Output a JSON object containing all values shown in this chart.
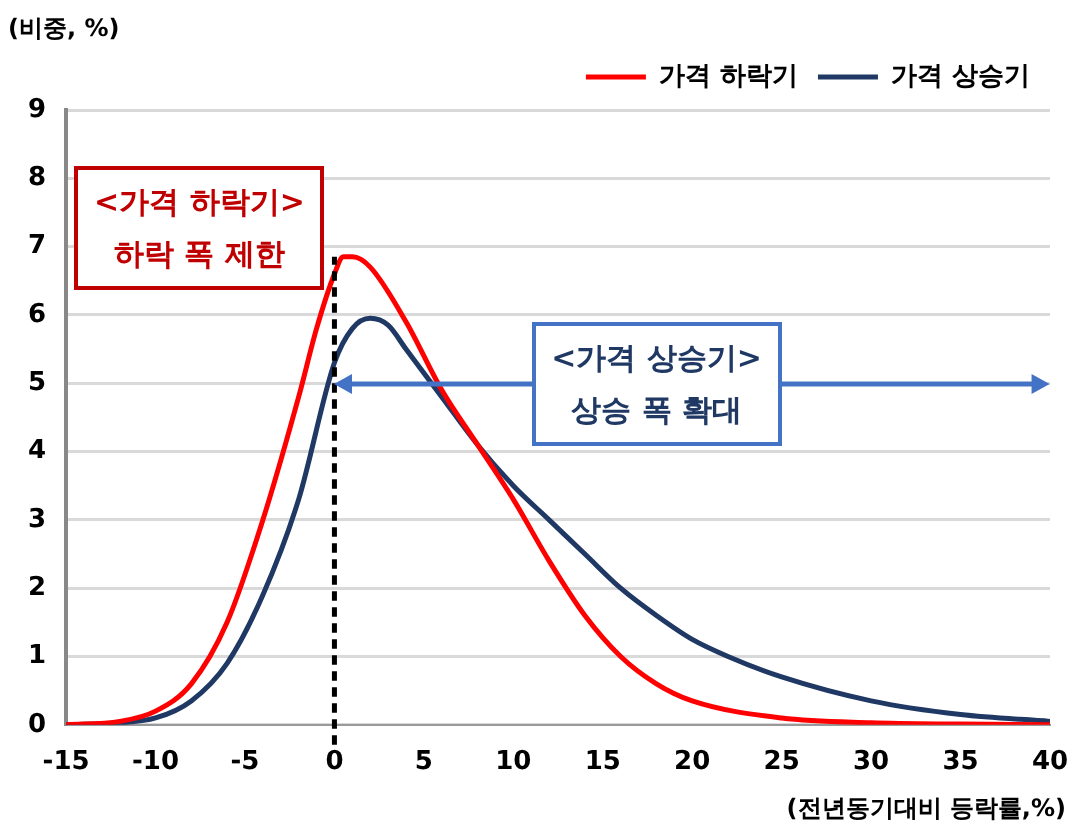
{
  "chart_data": {
    "type": "line",
    "ylabel": "(비중, %)",
    "xlabel": "(전년동기대비 등락률,%)",
    "annotations": [
      "<가격 하락기>\n하락 폭 제한",
      "<가격 상승기>\n상승 폭 확대"
    ],
    "series": [
      {
        "name": "가격 하락기",
        "color": "#ff0000",
        "x": [
          -15,
          -12,
          -10,
          -8,
          -6,
          -4,
          -2,
          -1,
          0,
          0.5,
          1,
          2,
          4,
          6,
          8,
          10,
          12,
          14,
          16,
          18,
          20,
          25,
          30,
          35,
          40
        ],
        "values": [
          0,
          0.05,
          0.2,
          0.6,
          1.5,
          3.0,
          4.8,
          5.8,
          6.6,
          6.85,
          6.85,
          6.7,
          5.9,
          4.9,
          4.1,
          3.3,
          2.4,
          1.6,
          1.0,
          0.6,
          0.35,
          0.1,
          0.03,
          0.01,
          0
        ]
      },
      {
        "name": "가격 상승기",
        "color": "#1f3864",
        "x": [
          -15,
          -12,
          -10,
          -8,
          -6,
          -4,
          -2,
          0,
          1,
          2,
          3,
          4,
          6,
          8,
          10,
          12,
          14,
          16,
          18,
          20,
          22,
          25,
          30,
          35,
          40
        ],
        "values": [
          0,
          0.03,
          0.1,
          0.35,
          0.9,
          1.9,
          3.3,
          5.3,
          5.8,
          5.95,
          5.85,
          5.5,
          4.8,
          4.1,
          3.5,
          3.0,
          2.5,
          2.0,
          1.6,
          1.25,
          1.0,
          0.7,
          0.35,
          0.15,
          0.05
        ]
      }
    ],
    "xlim": [
      -15,
      40
    ],
    "xticks": [
      -15,
      -10,
      -5,
      0,
      5,
      10,
      15,
      20,
      25,
      30,
      35,
      40
    ],
    "ylim": [
      0,
      9
    ],
    "yticks": [
      0,
      1,
      2,
      3,
      4,
      5,
      6,
      7,
      8,
      9
    ],
    "ref_lines": [
      {
        "axis": "x",
        "value": 0,
        "color": "#000000",
        "line_style": "dashed"
      }
    ],
    "grid": "y",
    "legend": "top right",
    "marker": "none",
    "line_style": "solid"
  }
}
